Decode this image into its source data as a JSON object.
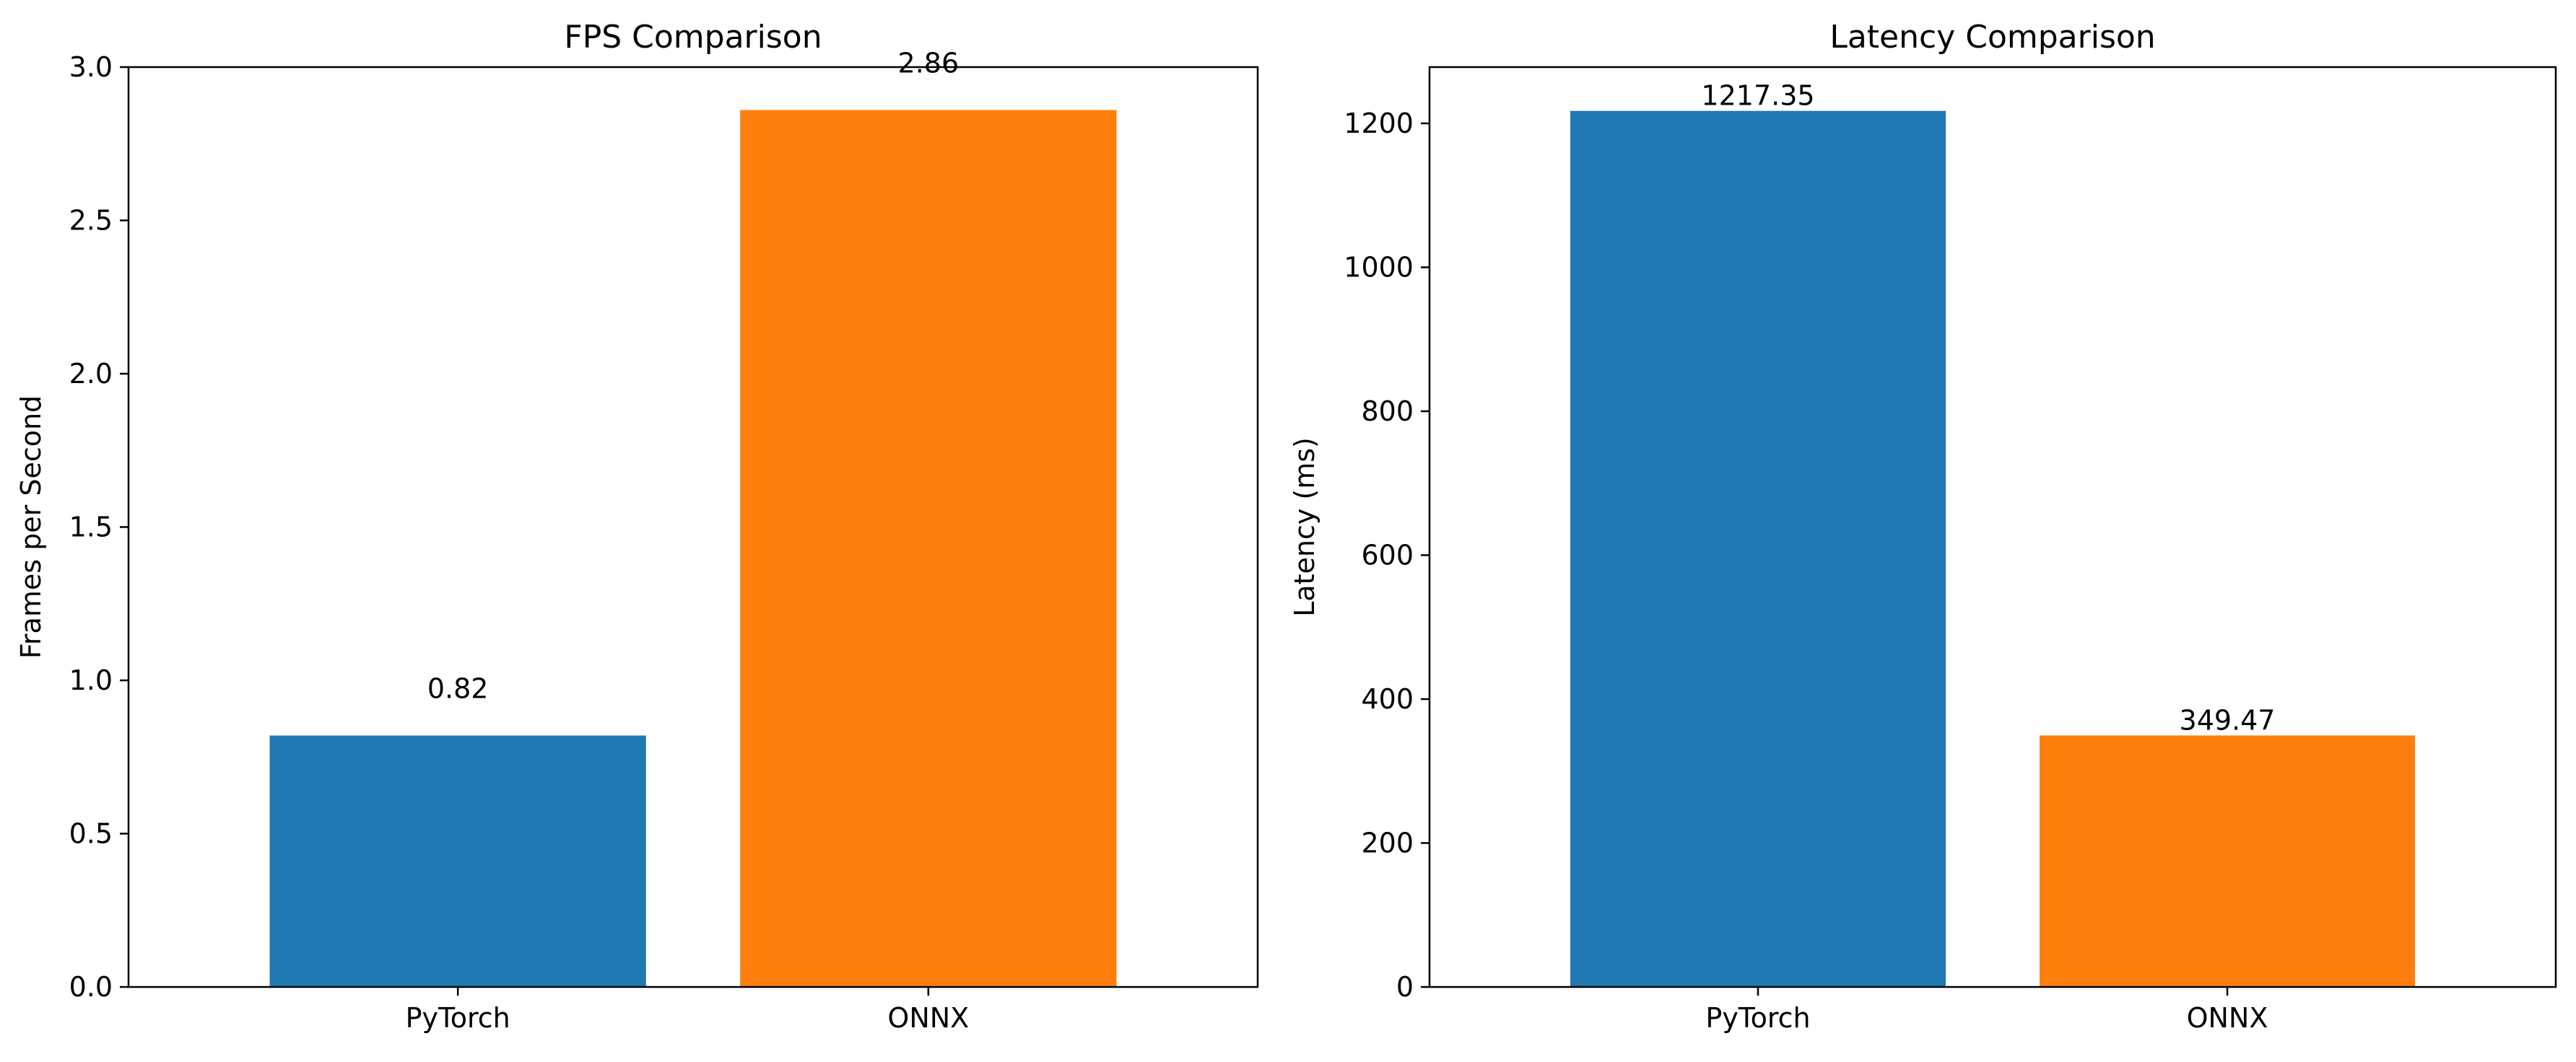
{
  "colors": {
    "pytorch": "#1f77b4",
    "onnx": "#ff7f0e",
    "axis": "#000000",
    "background": "#ffffff"
  },
  "chart_data": [
    {
      "id": "fps",
      "type": "bar",
      "title": "FPS Comparison",
      "xlabel": "",
      "ylabel": "Frames per Second",
      "categories": [
        "PyTorch",
        "ONNX"
      ],
      "values": [
        0.82,
        2.86
      ],
      "data_labels": [
        "0.82",
        "2.86"
      ],
      "bar_colors": [
        "#1f77b4",
        "#ff7f0e"
      ],
      "ylim": [
        0,
        3.0
      ],
      "yticks": [
        0,
        0.5,
        1.0,
        1.5,
        2.0,
        2.5,
        3.0
      ],
      "ytick_labels": [
        "0.0",
        "0.5",
        "1.0",
        "1.5",
        "2.0",
        "2.5",
        "3.0"
      ],
      "grid": false,
      "legend": "none"
    },
    {
      "id": "latency",
      "type": "bar",
      "title": "Latency Comparison",
      "xlabel": "",
      "ylabel": "Latency (ms)",
      "categories": [
        "PyTorch",
        "ONNX"
      ],
      "values": [
        1217.35,
        349.47
      ],
      "data_labels": [
        "1217.35",
        "349.47"
      ],
      "bar_colors": [
        "#1f77b4",
        "#ff7f0e"
      ],
      "ylim": [
        0,
        1278.2
      ],
      "yticks": [
        0,
        200,
        400,
        600,
        800,
        1000,
        1200
      ],
      "ytick_labels": [
        "0",
        "200",
        "400",
        "600",
        "800",
        "1000",
        "1200"
      ],
      "grid": false,
      "legend": "none"
    }
  ]
}
